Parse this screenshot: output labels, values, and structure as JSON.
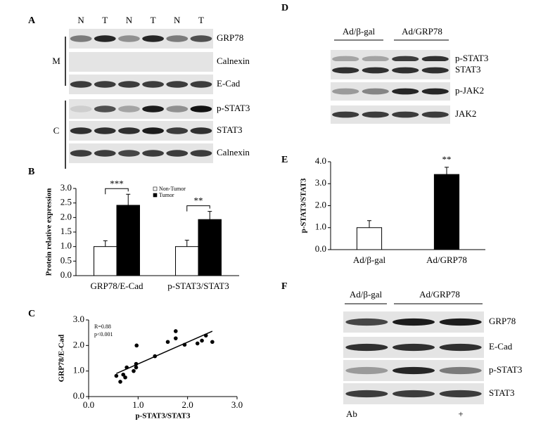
{
  "panel_letters": [
    "A",
    "B",
    "C",
    "D",
    "E",
    "F"
  ],
  "blots": [
    {
      "lanes": [
        "N",
        "T",
        "N",
        "T",
        "N",
        "T"
      ],
      "fractions": [
        "M",
        "C"
      ],
      "rows": [
        "GRP78",
        "Calnexin",
        "E-Cad",
        "p-STAT3",
        "STAT3",
        "Calnexin"
      ]
    },
    {
      "groups": [
        "Ad/β-gal",
        "Ad/GRP78"
      ],
      "rows": [
        "p-STAT3",
        "STAT3",
        "p-JAK2",
        "JAK2"
      ]
    },
    {
      "groups": [
        "Ad/β-gal",
        "Ad/GRP78"
      ],
      "rows": [
        "GRP78",
        "E-Cad",
        "p-STAT3",
        "STAT3"
      ],
      "treatment": {
        "label": "Ab",
        "marks": [
          "+"
        ]
      }
    }
  ],
  "chart_data": [
    {
      "type": "bar",
      "ylabel": "Protein relative expression",
      "categories": [
        "GRP78/E-Cad",
        "p-STAT3/STAT3"
      ],
      "series": [
        {
          "name": "Non-Tumor",
          "color": "#ffffff",
          "values": [
            1.0,
            1.0
          ],
          "errors": [
            0.2,
            0.22
          ]
        },
        {
          "name": "Tumor",
          "color": "#000000",
          "values": [
            2.42,
            1.93
          ],
          "errors": [
            0.38,
            0.28
          ]
        }
      ],
      "ylim": [
        0,
        3.0
      ],
      "yticks": [
        {
          "value": 0,
          "label": "0.0"
        },
        {
          "value": 0.5,
          "label": "0.5"
        },
        {
          "value": 1,
          "label": "1.0"
        },
        {
          "value": 1.5,
          "label": "1.5"
        },
        {
          "value": 2,
          "label": "2.0"
        },
        {
          "value": 2.5,
          "label": "2.5"
        },
        {
          "value": 3,
          "label": "3.0"
        }
      ],
      "annotations": [
        "***",
        "**"
      ]
    },
    {
      "type": "scatter",
      "xlabel": "p-STAT3/STAT3",
      "ylabel": "GRP78/E-Cad",
      "x": [
        0.56,
        0.64,
        0.7,
        0.74,
        0.77,
        0.91,
        0.96,
        0.97,
        0.96,
        1.34,
        1.6,
        1.76,
        1.76,
        1.94,
        2.2,
        2.29,
        2.37,
        2.5
      ],
      "y": [
        0.81,
        0.58,
        0.86,
        0.75,
        1.14,
        1.0,
        1.14,
        2.0,
        1.28,
        1.58,
        2.14,
        2.28,
        2.56,
        2.03,
        2.08,
        2.19,
        2.39,
        2.14
      ],
      "xlim": [
        0,
        3.0
      ],
      "ylim": [
        0,
        3.0
      ],
      "xticks": [
        {
          "value": 0,
          "label": "0.0"
        },
        {
          "value": 1,
          "label": "1.0"
        },
        {
          "value": 2,
          "label": "2.0"
        },
        {
          "value": 3,
          "label": "3.0"
        }
      ],
      "yticks": [
        {
          "value": 0,
          "label": "0.0"
        },
        {
          "value": 1,
          "label": "1.0"
        },
        {
          "value": 2,
          "label": "2.0"
        },
        {
          "value": 3,
          "label": "3.0"
        }
      ],
      "annotations": [
        "R=0.88",
        "p<0.001"
      ]
    },
    {
      "type": "bar",
      "ylabel": "p-STAT3/STAT3",
      "categories": [
        "Ad/β-gal",
        "Ad/GRP78"
      ],
      "values": [
        1.0,
        3.42
      ],
      "errors": [
        0.32,
        0.33
      ],
      "colors": [
        "#ffffff",
        "#000000"
      ],
      "ylim": [
        0,
        4.0
      ],
      "yticks": [
        {
          "value": 0,
          "label": "0.0"
        },
        {
          "value": 1,
          "label": "1.0"
        },
        {
          "value": 2,
          "label": "2.0"
        },
        {
          "value": 3,
          "label": "3.0"
        },
        {
          "value": 4,
          "label": "4.0"
        }
      ],
      "annotations": [
        "**"
      ]
    }
  ]
}
